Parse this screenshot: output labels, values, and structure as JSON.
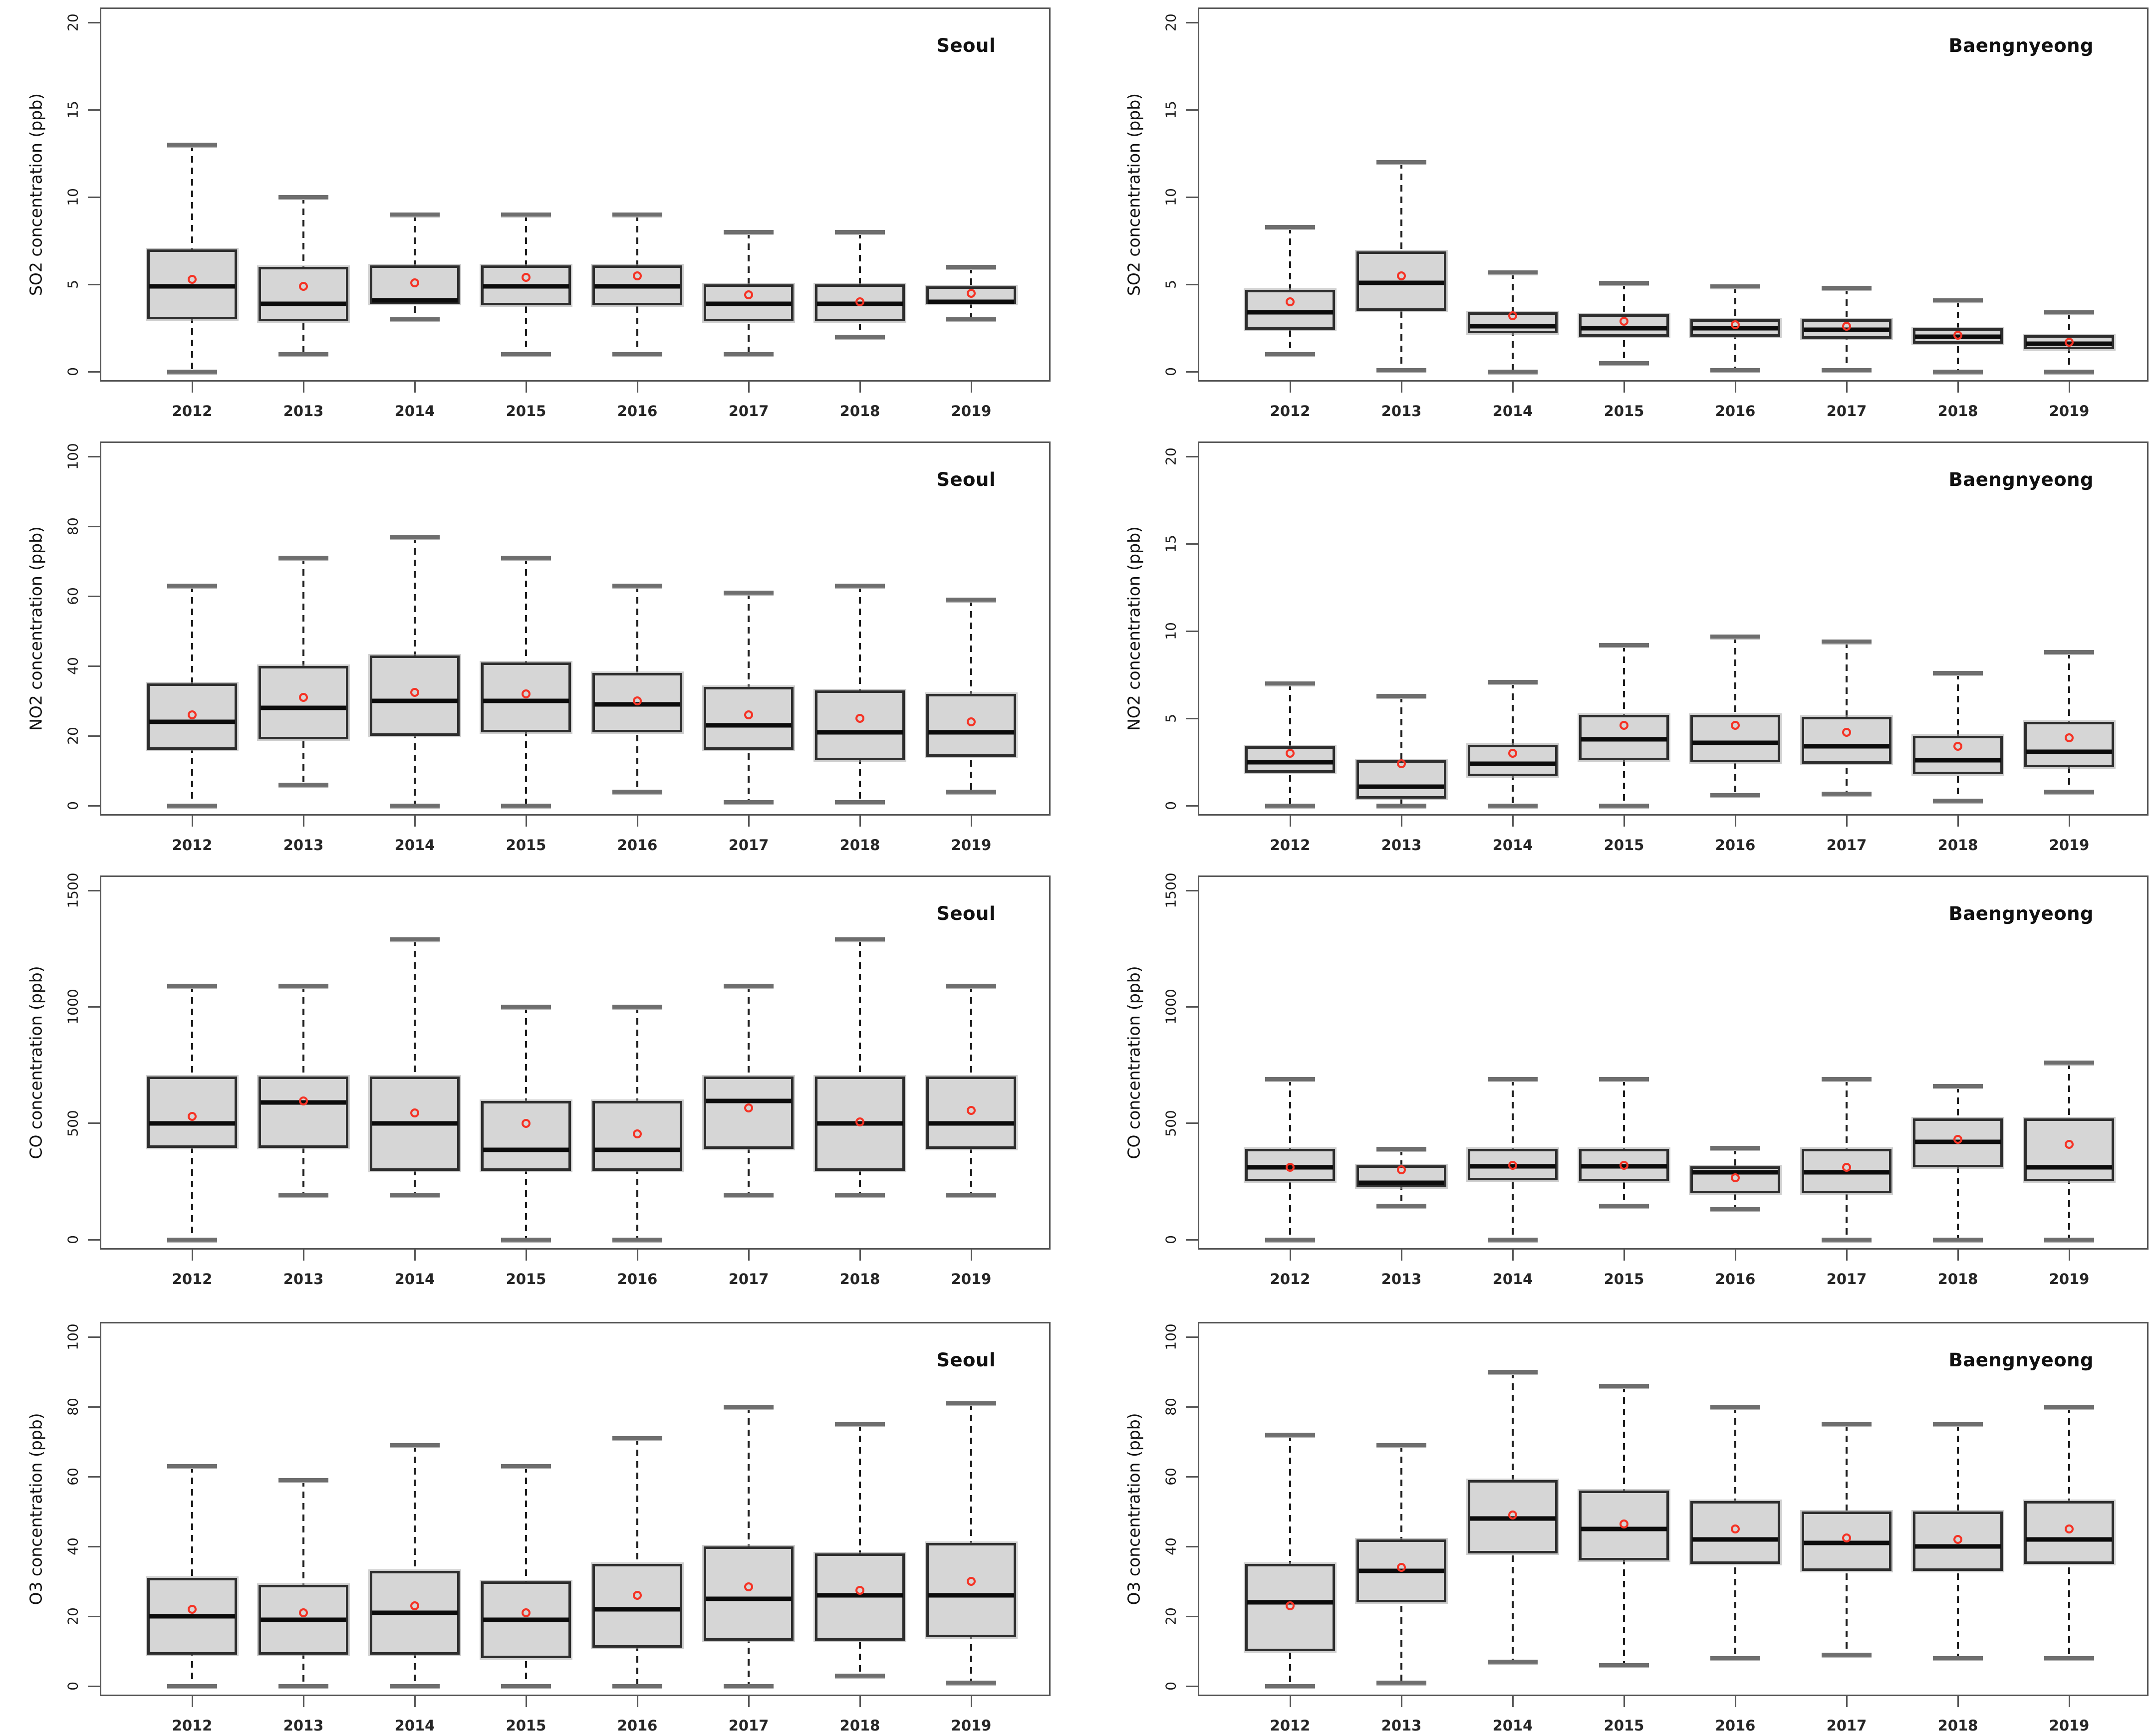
{
  "figure": {
    "name": "Air pollutant concentration boxplots, Seoul vs Baengnyeong, 2012-2019",
    "background": "#ffffff",
    "grid": {
      "rows": 4,
      "cols": 2
    },
    "colors": {
      "box_fill": "#d6d6d6",
      "box_border": "#2e2e2e",
      "median": "#0c0c0c",
      "mean_marker": "#f53325",
      "whisker": "#1e1e1e",
      "staple": "#6e6e6e",
      "axis": "#565656",
      "text": "#111111"
    }
  },
  "chart_data": [
    {
      "type": "box",
      "title": "Seoul",
      "ylabel": "SO2 concentration (ppb)",
      "ylim": [
        0,
        20
      ],
      "yticks": [
        0,
        5,
        10,
        15,
        20
      ],
      "grid": false,
      "legend": "none",
      "categories": [
        "2012",
        "2013",
        "2014",
        "2015",
        "2016",
        "2017",
        "2018",
        "2019"
      ],
      "series": [
        {
          "year": "2012",
          "min": 0,
          "q1": 3.0,
          "median": 4.9,
          "q3": 7.0,
          "max": 13,
          "mean": 5.3
        },
        {
          "year": "2013",
          "min": 1,
          "q1": 2.9,
          "median": 3.9,
          "q3": 6.0,
          "max": 10,
          "mean": 4.9
        },
        {
          "year": "2014",
          "min": 3,
          "q1": 3.9,
          "median": 4.1,
          "q3": 6.1,
          "max": 9,
          "mean": 5.1
        },
        {
          "year": "2015",
          "min": 1,
          "q1": 3.8,
          "median": 4.9,
          "q3": 6.1,
          "max": 9,
          "mean": 5.4
        },
        {
          "year": "2016",
          "min": 1,
          "q1": 3.8,
          "median": 4.9,
          "q3": 6.1,
          "max": 9,
          "mean": 5.5
        },
        {
          "year": "2017",
          "min": 1,
          "q1": 2.9,
          "median": 3.9,
          "q3": 5.0,
          "max": 8,
          "mean": 4.4
        },
        {
          "year": "2018",
          "min": 2,
          "q1": 2.9,
          "median": 3.9,
          "q3": 5.0,
          "max": 8,
          "mean": 4.0
        },
        {
          "year": "2019",
          "min": 3,
          "q1": 3.9,
          "median": 4.0,
          "q3": 4.9,
          "max": 6,
          "mean": 4.5
        }
      ]
    },
    {
      "type": "box",
      "title": "Baengnyeong",
      "ylabel": "SO2 concentration (ppb)",
      "ylim": [
        0,
        20
      ],
      "yticks": [
        0,
        5,
        10,
        15,
        20
      ],
      "grid": false,
      "legend": "none",
      "categories": [
        "2012",
        "2013",
        "2014",
        "2015",
        "2016",
        "2017",
        "2018",
        "2019"
      ],
      "series": [
        {
          "year": "2012",
          "min": 1,
          "q1": 2.4,
          "median": 3.4,
          "q3": 4.7,
          "max": 8.3,
          "mean": 4.0
        },
        {
          "year": "2013",
          "min": 0.1,
          "q1": 3.5,
          "median": 5.1,
          "q3": 6.9,
          "max": 12,
          "mean": 5.5
        },
        {
          "year": "2014",
          "min": 0,
          "q1": 2.2,
          "median": 2.6,
          "q3": 3.4,
          "max": 5.7,
          "mean": 3.2
        },
        {
          "year": "2015",
          "min": 0.5,
          "q1": 2.0,
          "median": 2.5,
          "q3": 3.3,
          "max": 5.1,
          "mean": 2.9
        },
        {
          "year": "2016",
          "min": 0.1,
          "q1": 2.0,
          "median": 2.5,
          "q3": 3.0,
          "max": 4.9,
          "mean": 2.7
        },
        {
          "year": "2017",
          "min": 0.1,
          "q1": 1.9,
          "median": 2.4,
          "q3": 3.0,
          "max": 4.8,
          "mean": 2.6
        },
        {
          "year": "2018",
          "min": 0,
          "q1": 1.6,
          "median": 2.0,
          "q3": 2.5,
          "max": 4.1,
          "mean": 2.1
        },
        {
          "year": "2019",
          "min": 0,
          "q1": 1.3,
          "median": 1.6,
          "q3": 2.1,
          "max": 3.4,
          "mean": 1.7
        }
      ]
    },
    {
      "type": "box",
      "title": "Seoul",
      "ylabel": "NO2 concentration (ppb)",
      "ylim": [
        0,
        100
      ],
      "yticks": [
        0,
        20,
        40,
        60,
        80,
        100
      ],
      "grid": false,
      "legend": "none",
      "categories": [
        "2012",
        "2013",
        "2014",
        "2015",
        "2016",
        "2017",
        "2018",
        "2019"
      ],
      "series": [
        {
          "year": "2012",
          "min": 0,
          "q1": 16,
          "median": 24,
          "q3": 35,
          "max": 63,
          "mean": 26
        },
        {
          "year": "2013",
          "min": 6,
          "q1": 19,
          "median": 28,
          "q3": 40,
          "max": 71,
          "mean": 31
        },
        {
          "year": "2014",
          "min": 0,
          "q1": 20,
          "median": 30,
          "q3": 43,
          "max": 77,
          "mean": 32.5
        },
        {
          "year": "2015",
          "min": 0,
          "q1": 21,
          "median": 30,
          "q3": 41,
          "max": 71,
          "mean": 32
        },
        {
          "year": "2016",
          "min": 4,
          "q1": 21,
          "median": 29,
          "q3": 38,
          "max": 63,
          "mean": 30
        },
        {
          "year": "2017",
          "min": 1,
          "q1": 16,
          "median": 23,
          "q3": 34,
          "max": 61,
          "mean": 26
        },
        {
          "year": "2018",
          "min": 1,
          "q1": 13,
          "median": 21,
          "q3": 33,
          "max": 63,
          "mean": 25
        },
        {
          "year": "2019",
          "min": 4,
          "q1": 14,
          "median": 21,
          "q3": 32,
          "max": 59,
          "mean": 24
        }
      ]
    },
    {
      "type": "box",
      "title": "Baengnyeong",
      "ylabel": "NO2 concentration (ppb)",
      "ylim": [
        0,
        20
      ],
      "yticks": [
        0,
        5,
        10,
        15,
        20
      ],
      "grid": false,
      "legend": "none",
      "categories": [
        "2012",
        "2013",
        "2014",
        "2015",
        "2016",
        "2017",
        "2018",
        "2019"
      ],
      "series": [
        {
          "year": "2012",
          "min": 0,
          "q1": 1.9,
          "median": 2.5,
          "q3": 3.4,
          "max": 7.0,
          "mean": 3.0
        },
        {
          "year": "2013",
          "min": 0,
          "q1": 0.4,
          "median": 1.1,
          "q3": 2.6,
          "max": 6.3,
          "mean": 2.4
        },
        {
          "year": "2014",
          "min": 0,
          "q1": 1.7,
          "median": 2.4,
          "q3": 3.5,
          "max": 7.1,
          "mean": 3.0
        },
        {
          "year": "2015",
          "min": 0,
          "q1": 2.6,
          "median": 3.8,
          "q3": 5.2,
          "max": 9.2,
          "mean": 4.6
        },
        {
          "year": "2016",
          "min": 0.6,
          "q1": 2.5,
          "median": 3.6,
          "q3": 5.2,
          "max": 9.7,
          "mean": 4.6
        },
        {
          "year": "2017",
          "min": 0.7,
          "q1": 2.4,
          "median": 3.4,
          "q3": 5.1,
          "max": 9.4,
          "mean": 4.2
        },
        {
          "year": "2018",
          "min": 0.3,
          "q1": 1.8,
          "median": 2.6,
          "q3": 4.0,
          "max": 7.6,
          "mean": 3.4
        },
        {
          "year": "2019",
          "min": 0.8,
          "q1": 2.2,
          "median": 3.1,
          "q3": 4.8,
          "max": 8.8,
          "mean": 3.9
        }
      ]
    },
    {
      "type": "box",
      "title": "Seoul",
      "ylabel": "CO concentration (ppb)",
      "ylim": [
        0,
        1500
      ],
      "yticks": [
        0,
        500,
        1000,
        1500
      ],
      "grid": false,
      "legend": "none",
      "categories": [
        "2012",
        "2013",
        "2014",
        "2015",
        "2016",
        "2017",
        "2018",
        "2019"
      ],
      "series": [
        {
          "year": "2012",
          "min": 0,
          "q1": 395,
          "median": 500,
          "q3": 700,
          "max": 1090,
          "mean": 530
        },
        {
          "year": "2013",
          "min": 190,
          "q1": 395,
          "median": 590,
          "q3": 700,
          "max": 1090,
          "mean": 595
        },
        {
          "year": "2014",
          "min": 190,
          "q1": 295,
          "median": 500,
          "q3": 700,
          "max": 1290,
          "mean": 545
        },
        {
          "year": "2015",
          "min": 0,
          "q1": 295,
          "median": 385,
          "q3": 595,
          "max": 1000,
          "mean": 500
        },
        {
          "year": "2016",
          "min": 0,
          "q1": 295,
          "median": 385,
          "q3": 595,
          "max": 1000,
          "mean": 455
        },
        {
          "year": "2017",
          "min": 190,
          "q1": 390,
          "median": 595,
          "q3": 700,
          "max": 1090,
          "mean": 565
        },
        {
          "year": "2018",
          "min": 190,
          "q1": 295,
          "median": 500,
          "q3": 700,
          "max": 1290,
          "mean": 505
        },
        {
          "year": "2019",
          "min": 190,
          "q1": 390,
          "median": 500,
          "q3": 700,
          "max": 1090,
          "mean": 555
        }
      ]
    },
    {
      "type": "box",
      "title": "Baengnyeong",
      "ylabel": "CO concentration (ppb)",
      "ylim": [
        0,
        1500
      ],
      "yticks": [
        0,
        500,
        1000,
        1500
      ],
      "grid": false,
      "legend": "none",
      "categories": [
        "2012",
        "2013",
        "2014",
        "2015",
        "2016",
        "2017",
        "2018",
        "2019"
      ],
      "series": [
        {
          "year": "2012",
          "min": 0,
          "q1": 250,
          "median": 310,
          "q3": 390,
          "max": 690,
          "mean": 310
        },
        {
          "year": "2013",
          "min": 145,
          "q1": 225,
          "median": 245,
          "q3": 320,
          "max": 390,
          "mean": 300
        },
        {
          "year": "2014",
          "min": 0,
          "q1": 255,
          "median": 315,
          "q3": 390,
          "max": 690,
          "mean": 320
        },
        {
          "year": "2015",
          "min": 145,
          "q1": 250,
          "median": 315,
          "q3": 390,
          "max": 690,
          "mean": 320
        },
        {
          "year": "2016",
          "min": 130,
          "q1": 200,
          "median": 290,
          "q3": 315,
          "max": 395,
          "mean": 265
        },
        {
          "year": "2017",
          "min": 0,
          "q1": 200,
          "median": 290,
          "q3": 390,
          "max": 690,
          "mean": 310
        },
        {
          "year": "2018",
          "min": 0,
          "q1": 310,
          "median": 420,
          "q3": 520,
          "max": 660,
          "mean": 430
        },
        {
          "year": "2019",
          "min": 0,
          "q1": 250,
          "median": 310,
          "q3": 520,
          "max": 760,
          "mean": 410
        }
      ]
    },
    {
      "type": "box",
      "title": "Seoul",
      "ylabel": "O3 concentration (ppb)",
      "ylim": [
        0,
        100
      ],
      "yticks": [
        0,
        20,
        40,
        60,
        80,
        100
      ],
      "grid": false,
      "legend": "none",
      "categories": [
        "2012",
        "2013",
        "2014",
        "2015",
        "2016",
        "2017",
        "2018",
        "2019"
      ],
      "series": [
        {
          "year": "2012",
          "min": 0,
          "q1": 9,
          "median": 20,
          "q3": 31,
          "max": 63,
          "mean": 22
        },
        {
          "year": "2013",
          "min": 0,
          "q1": 9,
          "median": 19,
          "q3": 29,
          "max": 59,
          "mean": 21
        },
        {
          "year": "2014",
          "min": 0,
          "q1": 9,
          "median": 21,
          "q3": 33,
          "max": 69,
          "mean": 23
        },
        {
          "year": "2015",
          "min": 0,
          "q1": 8,
          "median": 19,
          "q3": 30,
          "max": 63,
          "mean": 21
        },
        {
          "year": "2016",
          "min": 0,
          "q1": 11,
          "median": 22,
          "q3": 35,
          "max": 71,
          "mean": 26
        },
        {
          "year": "2017",
          "min": 0,
          "q1": 13,
          "median": 25,
          "q3": 40,
          "max": 80,
          "mean": 28.5
        },
        {
          "year": "2018",
          "min": 3,
          "q1": 13,
          "median": 26,
          "q3": 38,
          "max": 75,
          "mean": 27.5
        },
        {
          "year": "2019",
          "min": 1,
          "q1": 14,
          "median": 26,
          "q3": 41,
          "max": 81,
          "mean": 30
        }
      ]
    },
    {
      "type": "box",
      "title": "Baengnyeong",
      "ylabel": "O3 concentration (ppb)",
      "ylim": [
        0,
        100
      ],
      "yticks": [
        0,
        20,
        40,
        60,
        80,
        100
      ],
      "grid": false,
      "legend": "none",
      "categories": [
        "2012",
        "2013",
        "2014",
        "2015",
        "2016",
        "2017",
        "2018",
        "2019"
      ],
      "series": [
        {
          "year": "2012",
          "min": 0,
          "q1": 10,
          "median": 24,
          "q3": 35,
          "max": 72,
          "mean": 23
        },
        {
          "year": "2013",
          "min": 1,
          "q1": 24,
          "median": 33,
          "q3": 42,
          "max": 69,
          "mean": 34
        },
        {
          "year": "2014",
          "min": 7,
          "q1": 38,
          "median": 48,
          "q3": 59,
          "max": 90,
          "mean": 49
        },
        {
          "year": "2015",
          "min": 6,
          "q1": 36,
          "median": 45,
          "q3": 56,
          "max": 86,
          "mean": 46.5
        },
        {
          "year": "2016",
          "min": 8,
          "q1": 35,
          "median": 42,
          "q3": 53,
          "max": 80,
          "mean": 45
        },
        {
          "year": "2017",
          "min": 9,
          "q1": 33,
          "median": 41,
          "q3": 50,
          "max": 75,
          "mean": 42.5
        },
        {
          "year": "2018",
          "min": 8,
          "q1": 33,
          "median": 40,
          "q3": 50,
          "max": 75,
          "mean": 42
        },
        {
          "year": "2019",
          "min": 8,
          "q1": 35,
          "median": 42,
          "q3": 53,
          "max": 80,
          "mean": 45
        }
      ]
    }
  ]
}
